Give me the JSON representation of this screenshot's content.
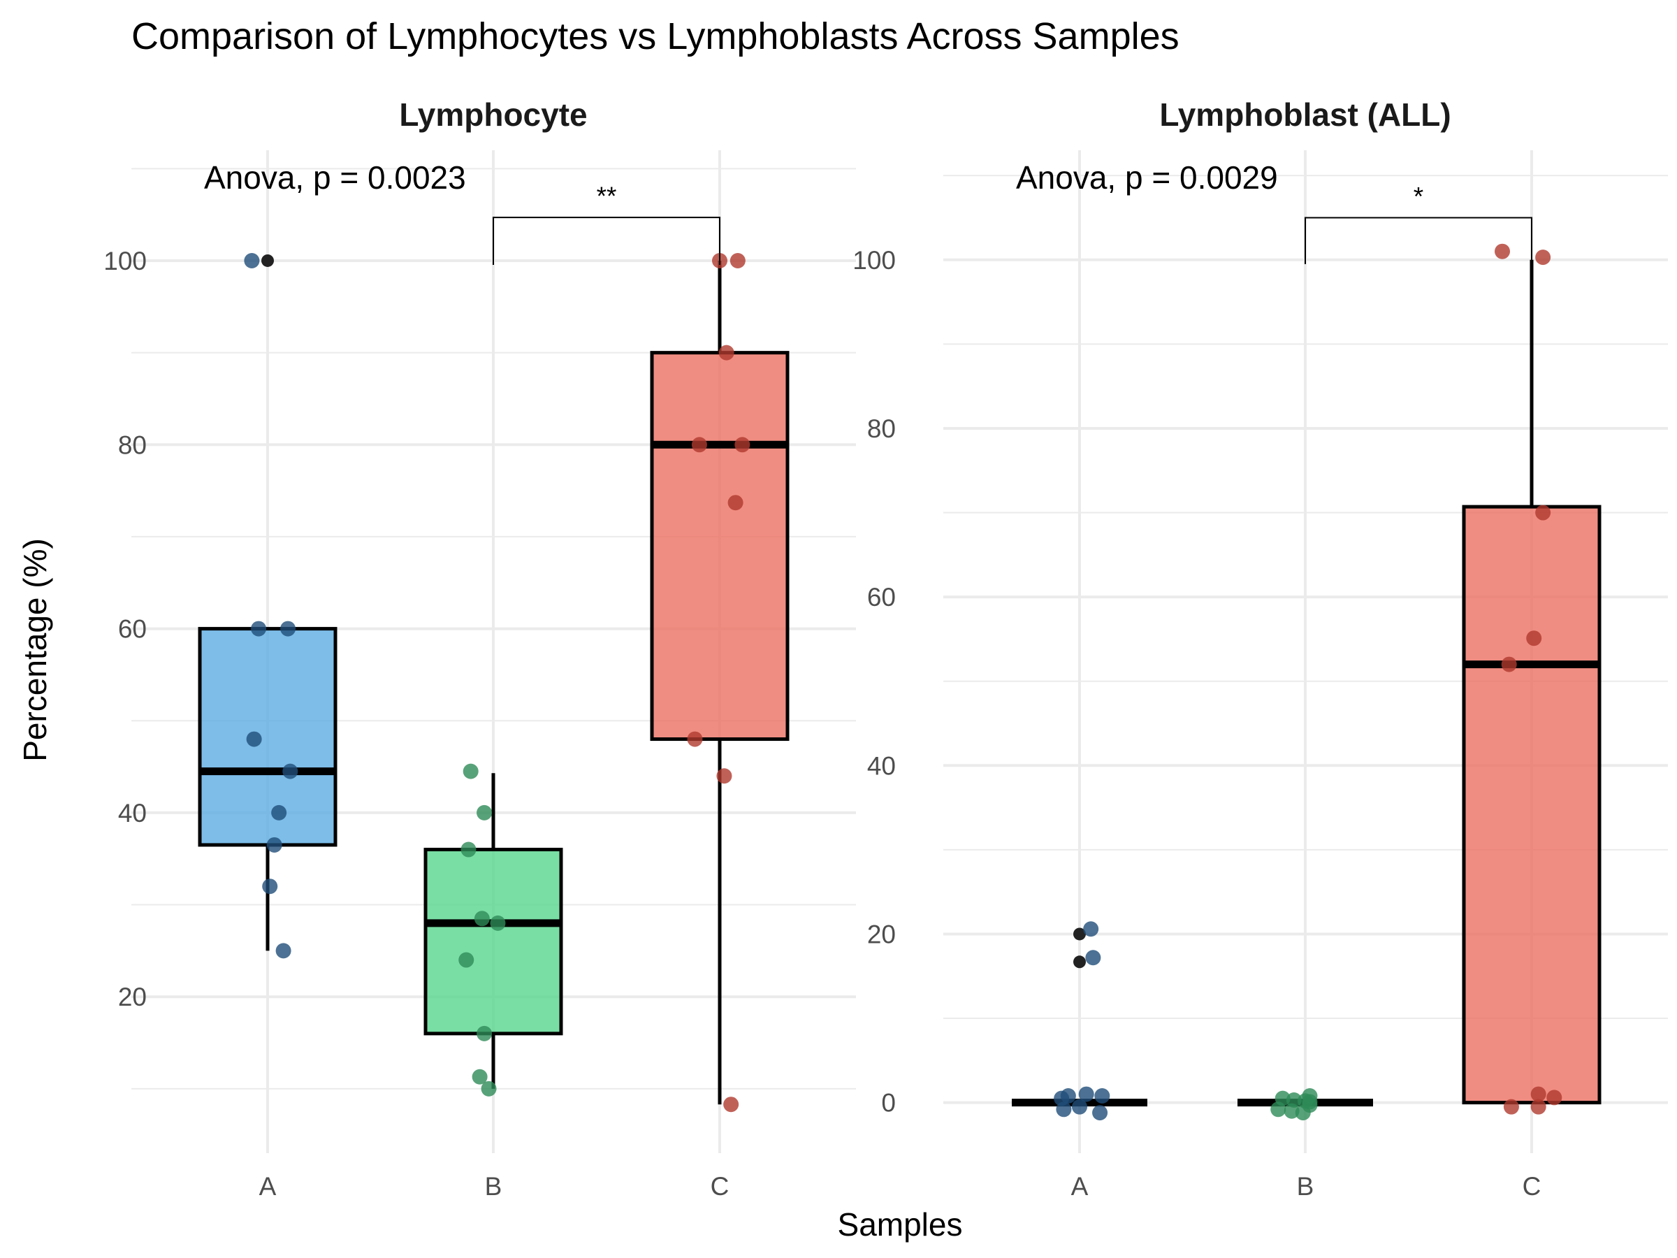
{
  "chart_data": {
    "type": "box",
    "title": "Comparison of Lymphocytes vs Lymphoblasts Across Samples",
    "xlabel": "Samples",
    "ylabel": "Percentage (%)",
    "categories": [
      "A",
      "B",
      "C"
    ],
    "colors": {
      "A": "#5DADE2",
      "B": "#58D68D",
      "C": "#EC7063"
    },
    "point_colors": {
      "A": "#1F4E79",
      "B": "#2E8B57",
      "C": "#B03A2E",
      "outlier": "#222222"
    },
    "grid": true,
    "panels": [
      {
        "name": "Lymphocyte",
        "annotation": "Anova, p = 0.0023",
        "ylim": [
          3,
          112
        ],
        "yticks": [
          20,
          40,
          60,
          80,
          100
        ],
        "comparison": {
          "from": "B",
          "to": "C",
          "label": "**",
          "y": 104.7,
          "tip": 102.2
        },
        "groups": [
          {
            "category": "A",
            "q1": 36.5,
            "median": 44.5,
            "q3": 60,
            "whisker_low": 25,
            "whisker_high": 60,
            "outliers": [
              100
            ],
            "points": [
              [
                -0.07,
                100
              ],
              [
                -0.04,
                60
              ],
              [
                0.09,
                60
              ],
              [
                -0.06,
                48
              ],
              [
                0.1,
                44.5
              ],
              [
                0.05,
                40
              ],
              [
                0.03,
                36.5
              ],
              [
                0.01,
                32
              ],
              [
                0.07,
                25
              ]
            ]
          },
          {
            "category": "B",
            "q1": 16,
            "median": 28,
            "q3": 36,
            "whisker_low": 10,
            "whisker_high": 44.3,
            "outliers": [],
            "points": [
              [
                -0.1,
                44.5
              ],
              [
                -0.04,
                40
              ],
              [
                -0.11,
                36
              ],
              [
                -0.05,
                28.5
              ],
              [
                0.02,
                28
              ],
              [
                -0.12,
                24
              ],
              [
                -0.04,
                16
              ],
              [
                -0.06,
                11.3
              ],
              [
                -0.02,
                10
              ]
            ]
          },
          {
            "category": "C",
            "q1": 48,
            "median": 80,
            "q3": 90,
            "whisker_low": 8.3,
            "whisker_high": 100,
            "outliers": [],
            "points": [
              [
                0,
                100
              ],
              [
                0.08,
                100
              ],
              [
                0.03,
                90
              ],
              [
                -0.09,
                80
              ],
              [
                0.1,
                80
              ],
              [
                0.07,
                73.7
              ],
              [
                -0.11,
                48
              ],
              [
                0.02,
                44
              ],
              [
                0.05,
                8.3
              ]
            ]
          }
        ]
      },
      {
        "name": "Lymphoblast (ALL)",
        "annotation": "Anova, p = 0.0029",
        "ylim": [
          -6,
          113
        ],
        "yticks": [
          0,
          20,
          40,
          60,
          80,
          100
        ],
        "comparison": {
          "from": "B",
          "to": "C",
          "label": "*",
          "y": 105,
          "tip": 102.4
        },
        "groups": [
          {
            "category": "A",
            "q1": 0,
            "median": 0,
            "q3": 0,
            "whisker_low": 0,
            "whisker_high": 0,
            "outliers": [
              20,
              16.7
            ],
            "points": [
              [
                0.05,
                20.6
              ],
              [
                0.06,
                17.2
              ],
              [
                -0.08,
                0.5
              ],
              [
                -0.05,
                0.8
              ],
              [
                0.03,
                1
              ],
              [
                0.1,
                0.8
              ],
              [
                -0.07,
                -0.8
              ],
              [
                0.0,
                -0.5
              ],
              [
                0.09,
                -1.2
              ]
            ]
          },
          {
            "category": "B",
            "q1": 0,
            "median": 0,
            "q3": 0,
            "whisker_low": 0,
            "whisker_high": 0,
            "outliers": [],
            "points": [
              [
                -0.1,
                0.5
              ],
              [
                -0.05,
                0.3
              ],
              [
                0.0,
                0.2
              ],
              [
                0.02,
                0.1
              ],
              [
                0.02,
                -0.3
              ],
              [
                -0.12,
                -0.8
              ],
              [
                -0.06,
                -1
              ],
              [
                -0.01,
                -1.2
              ],
              [
                0.02,
                0.8
              ]
            ]
          },
          {
            "category": "C",
            "q1": 0,
            "median": 52,
            "q3": 70.7,
            "whisker_low": 0,
            "whisker_high": 100,
            "outliers": [],
            "points": [
              [
                -0.13,
                101
              ],
              [
                0.05,
                100.3
              ],
              [
                0.05,
                70
              ],
              [
                0.01,
                55.1
              ],
              [
                -0.1,
                52
              ],
              [
                0.03,
                1
              ],
              [
                0.1,
                0.6
              ],
              [
                -0.09,
                -0.5
              ],
              [
                0.03,
                -0.5
              ]
            ]
          }
        ]
      }
    ]
  }
}
